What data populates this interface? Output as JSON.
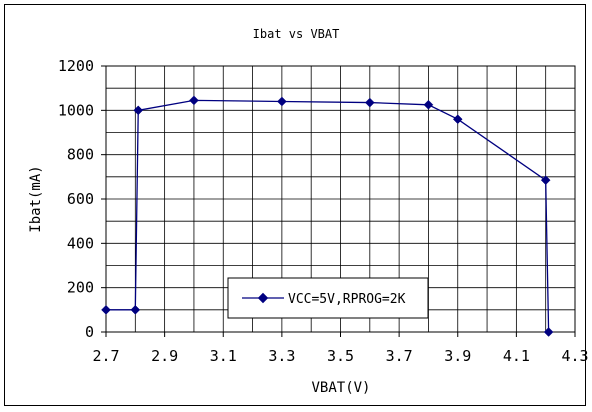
{
  "chart_data": {
    "type": "line",
    "title": "Ibat vs VBAT",
    "xlabel": "VBAT(V)",
    "ylabel": "Ibat(mA)",
    "xlim": [
      2.7,
      4.3
    ],
    "ylim": [
      0,
      1200
    ],
    "x_ticks": [
      2.7,
      2.9,
      3.1,
      3.3,
      3.5,
      3.7,
      3.9,
      4.1,
      4.3
    ],
    "x_tick_labels": [
      "2.7",
      "2.9",
      "3.1",
      "3.3",
      "3.5",
      "3.7",
      "3.9",
      "4.1",
      "4.3"
    ],
    "y_ticks": [
      0,
      200,
      400,
      600,
      800,
      1000,
      1200
    ],
    "y_tick_labels": [
      "0",
      "200",
      "400",
      "600",
      "800",
      "1000",
      "1200"
    ],
    "x_minor_step": 0.1,
    "y_minor_step": 100,
    "grid": true,
    "legend_position": "bottom-center",
    "series": [
      {
        "name": "VCC=5V,RPROG=2K",
        "color": "#000080",
        "marker": "diamond",
        "x": [
          2.7,
          2.8,
          2.81,
          3.0,
          3.3,
          3.6,
          3.8,
          3.9,
          4.2,
          4.21
        ],
        "y": [
          100,
          100,
          1000,
          1045,
          1040,
          1035,
          1025,
          960,
          685,
          0
        ]
      }
    ]
  }
}
